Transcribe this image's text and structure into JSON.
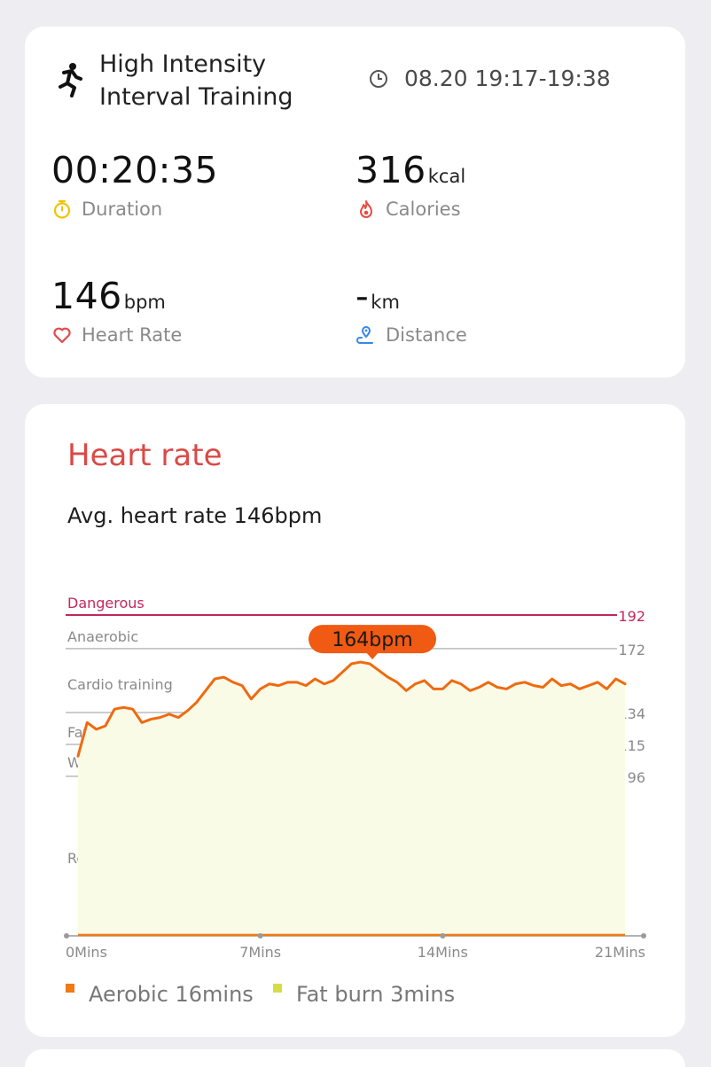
{
  "workout": {
    "title": "High Intensity Interval Training",
    "time_range": "08.20 19:17-19:38",
    "icon": "running-figure-icon"
  },
  "metrics": {
    "duration": {
      "value": "00:20:35",
      "unit": "",
      "label": "Duration",
      "icon": "timer-icon",
      "icon_color": "#f2c300"
    },
    "calories": {
      "value": "316",
      "unit": "kcal",
      "label": "Calories",
      "icon": "flame-icon",
      "icon_color": "#e94b40"
    },
    "heart_rate": {
      "value": "146",
      "unit": "bpm",
      "label": "Heart Rate",
      "icon": "heart-icon",
      "icon_color": "#e24b4b"
    },
    "distance": {
      "value": "-",
      "unit": "km",
      "label": "Distance",
      "icon": "location-pin-icon",
      "icon_color": "#3a86e8"
    }
  },
  "heart_rate_section": {
    "title": "Heart rate",
    "avg_text": "Avg. heart rate 146bpm"
  },
  "chart_data": {
    "type": "line",
    "x_unit": "Mins",
    "xlim": [
      0,
      21
    ],
    "x_ticks": [
      "0Mins",
      "7Mins",
      "14Mins",
      "21Mins"
    ],
    "ylim": [
      0,
      192
    ],
    "zones": [
      {
        "name": "Dangerous",
        "threshold": 192,
        "threshold_label": "192",
        "color": "#c2285b"
      },
      {
        "name": "Anaerobic",
        "threshold": 172,
        "threshold_label": "172",
        "color": "#bbbbbb"
      },
      {
        "name": "Cardio training",
        "threshold": 134,
        "threshold_label": "134",
        "color": "#bbbbbb"
      },
      {
        "name": "Fat burning",
        "threshold": 115,
        "threshold_label": "115",
        "color": "#bbbbbb"
      },
      {
        "name": "Warm up",
        "threshold": 96,
        "threshold_label": "96",
        "color": "#bbbbbb"
      },
      {
        "name": "Resting",
        "threshold": null,
        "threshold_label": "",
        "color": "#bbbbbb"
      }
    ],
    "peak_label": "164bpm",
    "peak_value": 164,
    "peak_x": 11.3,
    "line_color": "#ef6a10",
    "fill_color": "#fafbe6",
    "series": [
      {
        "x": [
          0,
          0.35,
          0.7,
          1.05,
          1.4,
          1.75,
          2.1,
          2.45,
          2.8,
          3.15,
          3.5,
          3.85,
          4.2,
          4.55,
          4.9,
          5.25,
          5.6,
          5.95,
          6.3,
          6.65,
          7.0,
          7.35,
          7.7,
          8.05,
          8.4,
          8.75,
          9.1,
          9.45,
          9.8,
          10.15,
          10.5,
          10.85,
          11.2,
          11.55,
          11.9,
          12.25,
          12.6,
          12.95,
          13.3,
          13.65,
          14.0,
          14.35,
          14.7,
          15.05,
          15.4,
          15.75,
          16.1,
          16.45,
          16.8,
          17.15,
          17.5,
          17.85,
          18.2,
          18.55,
          18.9,
          19.25,
          19.6,
          19.95,
          20.3,
          20.65,
          21.0
        ],
        "values": [
          108,
          128,
          124,
          126,
          136,
          137,
          136,
          128,
          130,
          131,
          133,
          131,
          135,
          140,
          147,
          154,
          155,
          152,
          150,
          142,
          148,
          151,
          150,
          152,
          152,
          150,
          154,
          151,
          153,
          158,
          163,
          164,
          163,
          159,
          155,
          152,
          147,
          151,
          153,
          148,
          148,
          153,
          151,
          147,
          149,
          152,
          149,
          148,
          151,
          152,
          150,
          149,
          154,
          150,
          151,
          148,
          150,
          152,
          148,
          154,
          151
        ]
      }
    ]
  },
  "legend": {
    "aerobic": {
      "label": "Aerobic 16mins",
      "color": "#f07a13"
    },
    "fat_burn": {
      "label": "Fat burn 3mins",
      "color": "#d6dc45"
    }
  }
}
